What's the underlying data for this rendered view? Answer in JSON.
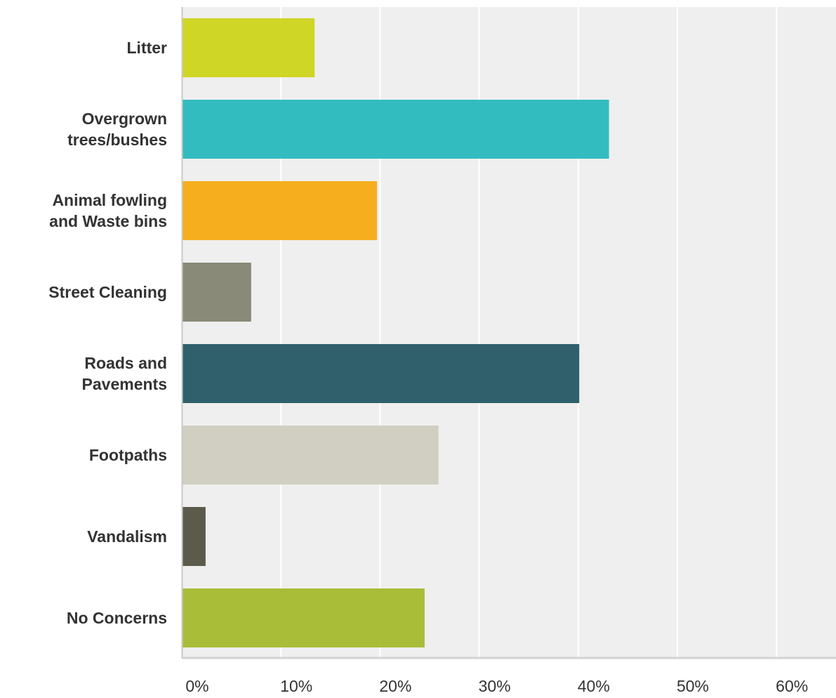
{
  "chart_data": {
    "type": "bar",
    "orientation": "horizontal",
    "title": "",
    "xlabel": "",
    "ylabel": "",
    "categories": [
      [
        "Litter"
      ],
      [
        "Overgrown",
        "trees/bushes"
      ],
      [
        "Animal fowling",
        "and Waste bins"
      ],
      [
        "Street Cleaning"
      ],
      [
        "Roads and",
        "Pavements"
      ],
      [
        "Footpaths"
      ],
      [
        "Vandalism"
      ],
      [
        "No Concerns"
      ]
    ],
    "values": [
      13.4,
      43.1,
      19.7,
      7.0,
      40.1,
      25.9,
      2.4,
      24.5
    ],
    "colors": [
      "#cfd626",
      "#33bcc0",
      "#f6ae1f",
      "#8a8a78",
      "#2f606c",
      "#d0cfc1",
      "#5c5b4b",
      "#a9bd38"
    ],
    "xlim": [
      0,
      66
    ],
    "xticks": [
      0,
      10,
      20,
      30,
      40,
      50,
      60
    ],
    "xtick_labels": [
      "0%",
      "10%",
      "20%",
      "30%",
      "40%",
      "50%",
      "60%"
    ],
    "grid": true,
    "legend": "none",
    "plot_background": "#efefef",
    "grid_color": "#ffffff",
    "label_color": "#333333"
  }
}
